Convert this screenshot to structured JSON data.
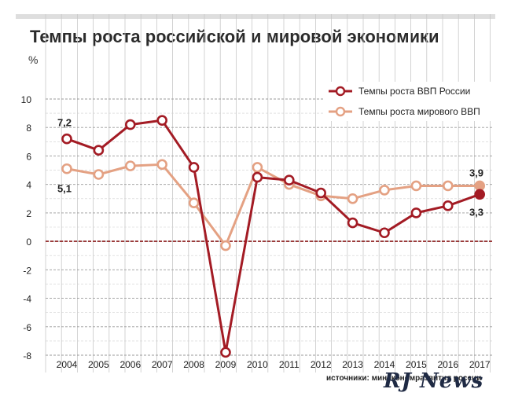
{
  "title": "Темпы роста российской и мировой экономики",
  "unit": "%",
  "source": "источники: минэкономразвития россии",
  "watermark": "RJ News",
  "colors": {
    "russia": "#a31b24",
    "world": "#e4a183",
    "zero_line": "#8b1a1a",
    "grid": "#9a9a9a"
  },
  "chart_data": {
    "type": "line",
    "x": [
      "2004",
      "2005",
      "2006",
      "2007",
      "2008",
      "2009",
      "2010",
      "2011",
      "2012",
      "2013",
      "2014",
      "2015",
      "2016",
      "2017"
    ],
    "series": [
      {
        "name": "Темпы роста ВВП России",
        "values": [
          7.2,
          6.4,
          8.2,
          8.5,
          5.2,
          -7.8,
          4.5,
          4.3,
          3.4,
          1.3,
          0.6,
          2.0,
          2.5,
          3.3
        ]
      },
      {
        "name": "Темпы роста мирового ВВП",
        "values": [
          5.1,
          4.7,
          5.3,
          5.4,
          2.7,
          -0.3,
          5.2,
          4.0,
          3.2,
          3.0,
          3.6,
          3.9,
          3.9,
          3.9
        ]
      }
    ],
    "ylim": [
      -8,
      10
    ],
    "yticks": [
      "10",
      "8",
      "6",
      "4",
      "2",
      "0",
      "-2",
      "-4",
      "-6",
      "-8"
    ],
    "annotations": [
      "7,2",
      "5,1",
      "3,9",
      "3,3"
    ],
    "grid": true,
    "legend": "top-right"
  }
}
